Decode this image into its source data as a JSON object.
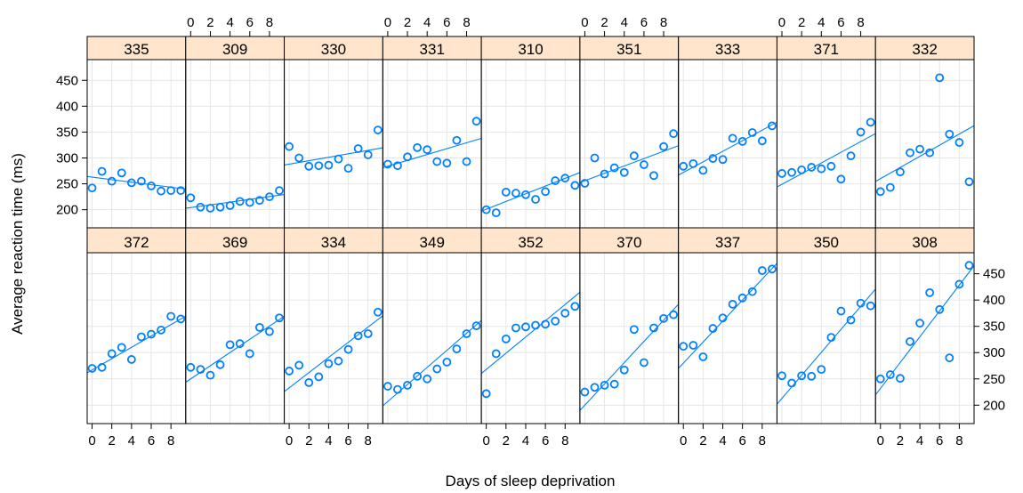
{
  "chart_data": {
    "type": "scatter",
    "xlabel": "Days of sleep deprivation",
    "ylabel": "Average reaction time (ms)",
    "xlim": [
      -0.5,
      9.5
    ],
    "ylim": [
      165,
      490
    ],
    "x_ticks": [
      0,
      2,
      4,
      6,
      8
    ],
    "y_ticks": [
      200,
      250,
      300,
      350,
      400,
      450
    ],
    "grid": true,
    "point_color": "#0080ff",
    "line_color": "#0080ff",
    "strip_color": "#ffe5cc",
    "days": [
      0,
      1,
      2,
      3,
      4,
      5,
      6,
      7,
      8,
      9
    ],
    "rows": [
      {
        "panels": [
          {
            "subject": "335",
            "y": [
              242,
              274,
              255,
              271,
              252,
              255,
              246,
              236,
              237,
              237
            ],
            "fit": [
              263,
              241
            ]
          },
          {
            "subject": "309",
            "y": [
              223,
              205,
              203,
              205,
              208,
              216,
              214,
              218,
              225,
              237
            ],
            "fit": [
              204,
              228
            ]
          },
          {
            "subject": "330",
            "y": [
              322,
              300,
              284,
              285,
              286,
              298,
              280,
              318,
              306,
              354
            ],
            "fit": [
              288,
              318
            ]
          },
          {
            "subject": "331",
            "y": [
              288,
              285,
              302,
              320,
              316,
              293,
              290,
              334,
              293,
              371
            ],
            "fit": [
              284,
              335
            ]
          },
          {
            "subject": "310",
            "y": [
              200,
              194,
              234,
              232,
              229,
              220,
              235,
              256,
              261,
              247
            ],
            "fit": [
              201,
              268
            ]
          },
          {
            "subject": "351",
            "y": [
              251,
              300,
              269,
              281,
              272,
              304,
              287,
              266,
              322,
              347
            ],
            "fit": [
              256,
              320
            ]
          },
          {
            "subject": "333",
            "y": [
              284,
              289,
              276,
              299,
              297,
              338,
              332,
              349,
              333,
              362
            ],
            "fit": [
              272,
              364
            ]
          },
          {
            "subject": "371",
            "y": [
              270,
              272,
              277,
              282,
              279,
              284,
              259,
              304,
              350,
              369
            ],
            "fit": [
              249,
              342
            ]
          },
          {
            "subject": "332",
            "y": [
              235,
              243,
              273,
              310,
              317,
              310,
              455,
              346,
              330,
              254
            ],
            "fit": [
              260,
              357
            ]
          }
        ]
      },
      {
        "panels": [
          {
            "subject": "372",
            "y": [
              270,
              272,
              298,
              310,
              287,
              330,
              335,
              343,
              369,
              364
            ],
            "fit": [
              267,
              364
            ]
          },
          {
            "subject": "369",
            "y": [
              272,
              268,
              257,
              277,
              315,
              317,
              298,
              348,
              340,
              366
            ],
            "fit": [
              250,
              363
            ]
          },
          {
            "subject": "334",
            "y": [
              265,
              276,
              243,
              254,
              279,
              284,
              306,
              332,
              336,
              377
            ],
            "fit": [
              233,
              363
            ]
          },
          {
            "subject": "349",
            "y": [
              236,
              230,
              238,
              255,
              250,
              269,
              282,
              307,
              336,
              351
            ],
            "fit": [
              207,
              353
            ]
          },
          {
            "subject": "352",
            "y": [
              222,
              298,
              326,
              347,
              349,
              352,
              354,
              360,
              375,
              388
            ],
            "fit": [
              268,
              407
            ]
          },
          {
            "subject": "370",
            "y": [
              225,
              234,
              238,
              240,
              267,
              344,
              281,
              347,
              365,
              372
            ],
            "fit": [
              200,
              382
            ]
          },
          {
            "subject": "337",
            "y": [
              312,
              314,
              292,
              346,
              366,
              392,
              404,
              416,
              456,
              459
            ],
            "fit": [
              280,
              460
            ]
          },
          {
            "subject": "350",
            "y": [
              256,
              242,
              256,
              255,
              268,
              329,
              379,
              362,
              394,
              389
            ],
            "fit": [
              213,
              410
            ]
          },
          {
            "subject": "308",
            "y": [
              250,
              258,
              251,
              321,
              356,
              414,
              382,
              290,
              430,
              466
            ],
            "fit": [
              232,
              453
            ]
          }
        ]
      }
    ]
  }
}
